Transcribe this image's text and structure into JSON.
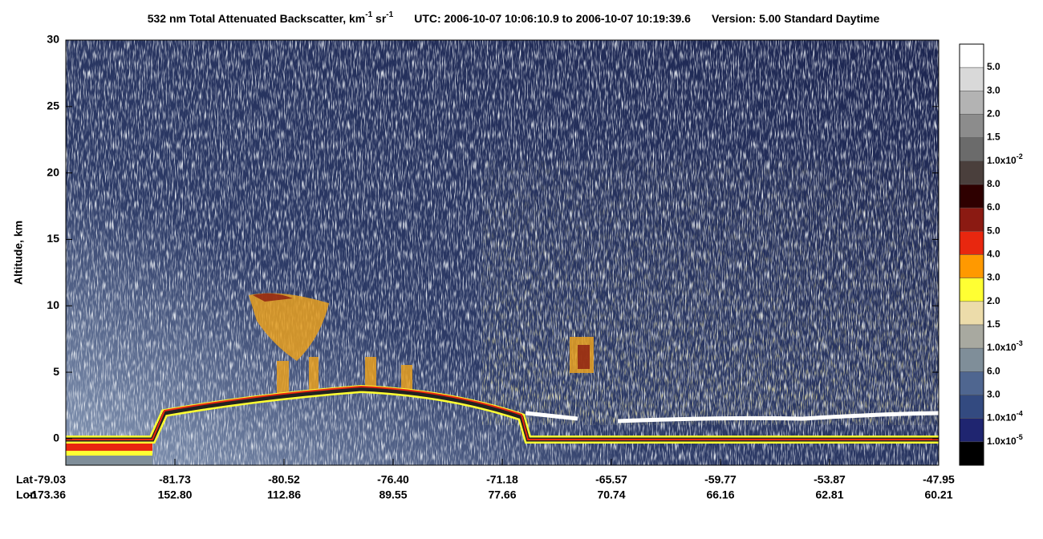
{
  "chart_data": {
    "type": "curtain",
    "title_parts": [
      "532 nm Total Attenuated Backscatter, km",
      "-1",
      " sr",
      "-1"
    ],
    "utc": "UTC:  2006-10-07 10:06:10.9  to  2006-10-07 10:19:39.6",
    "version": "Version: 5.00  Standard  Daytime",
    "y_label": "Altitude, km",
    "ylim": [
      -2,
      30
    ],
    "yticks": [
      0,
      5,
      10,
      15,
      20,
      25,
      30
    ],
    "row_labels": [
      "Lat",
      "Lon"
    ],
    "lat": [
      "-79.03",
      "-81.73",
      "-80.52",
      "-76.40",
      "-71.18",
      "-65.57",
      "-59.77",
      "-53.87",
      "-47.95"
    ],
    "lon": [
      "-173.36",
      "152.80",
      "112.86",
      "89.55",
      "77.66",
      "70.74",
      "66.16",
      "62.81",
      "60.21"
    ],
    "colorbar": {
      "colors": [
        "#ffffff",
        "#d9d9d9",
        "#b3b3b3",
        "#8c8c8c",
        "#6b6b6b",
        "#4a3f3c",
        "#2e0000",
        "#8b1a12",
        "#e8270f",
        "#ff9900",
        "#ffff33",
        "#ecdcaa",
        "#a8a9a0",
        "#7f8e99",
        "#4f6690",
        "#334a80",
        "#1f2570",
        "#000000"
      ],
      "labels": [
        {
          "text": "5.0"
        },
        {
          "text": "3.0"
        },
        {
          "text": "2.0"
        },
        {
          "text": "1.5"
        },
        {
          "text": "1.0x10",
          "exp": "-2"
        },
        {
          "text": "8.0"
        },
        {
          "text": "6.0"
        },
        {
          "text": "5.0"
        },
        {
          "text": "4.0"
        },
        {
          "text": "3.0"
        },
        {
          "text": "2.0"
        },
        {
          "text": "1.5"
        },
        {
          "text": "1.0x10",
          "exp": "-3"
        },
        {
          "text": "6.0"
        },
        {
          "text": "3.0"
        },
        {
          "text": "1.0x10",
          "exp": "-4"
        },
        {
          "text": "1.0x10",
          "exp": "-5"
        }
      ]
    }
  }
}
